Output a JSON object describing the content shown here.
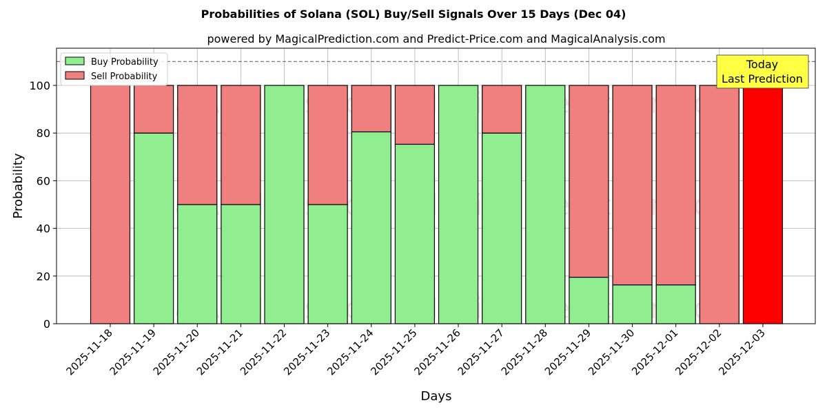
{
  "chart_data": {
    "type": "bar",
    "stacked": true,
    "title": "Probabilities of Solana (SOL) Buy/Sell Signals Over 15 Days (Dec 04)",
    "subtitle": "powered by MagicalPrediction.com and Predict-Price.com and MagicalAnalysis.com",
    "xlabel": "Days",
    "ylabel": "Probability",
    "ylim": [
      0,
      115.6
    ],
    "yticks": [
      0,
      20,
      40,
      60,
      80,
      100
    ],
    "grid": true,
    "legend_position": "top-left",
    "categories": [
      "2025-11-18",
      "2025-11-19",
      "2025-11-20",
      "2025-11-21",
      "2025-11-22",
      "2025-11-23",
      "2025-11-24",
      "2025-11-25",
      "2025-11-26",
      "2025-11-27",
      "2025-11-28",
      "2025-11-29",
      "2025-11-30",
      "2025-12-01",
      "2025-12-02",
      "2025-12-03"
    ],
    "series": [
      {
        "name": "Buy Probability",
        "color": "#90ee90",
        "values": [
          0,
          80,
          50,
          50,
          100,
          50,
          80.5,
          75.3,
          100,
          80,
          100,
          19.5,
          16.3,
          16.3,
          0,
          0
        ]
      },
      {
        "name": "Sell Probability",
        "color": "#f08080",
        "values": [
          100,
          20,
          50,
          50,
          0,
          50,
          19.5,
          24.7,
          0,
          20,
          0,
          80.5,
          83.7,
          83.7,
          100,
          100
        ]
      }
    ],
    "highlight": {
      "category": "2025-12-03",
      "color": "#ff0000"
    },
    "reference_line": {
      "y": 110,
      "style": "dashed"
    },
    "annotation": {
      "line1": "Today",
      "line2": "Last Prediction",
      "color": "#ffff44"
    },
    "watermarks": [
      "MagicalAnalysis.com",
      "MagicalPrediction.com"
    ]
  }
}
